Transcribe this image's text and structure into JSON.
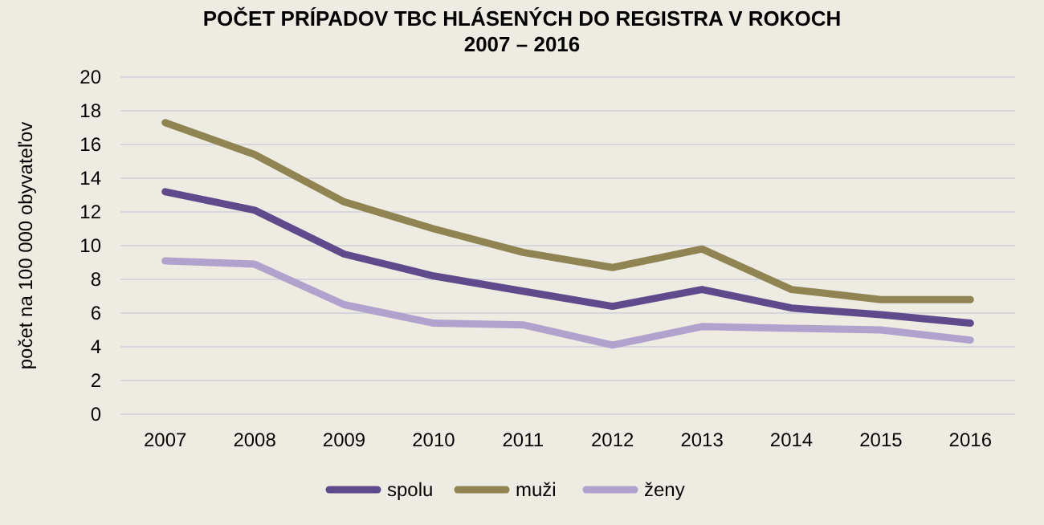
{
  "chart_data": {
    "type": "line",
    "title": "POČET PRÍPADOV TBC HLÁSENÝCH DO REGISTRA V ROKOCH\n2007 – 2016",
    "ylabel": "počet na 100 000 obyvateľov",
    "categories": [
      "2007",
      "2008",
      "2009",
      "2010",
      "2011",
      "2012",
      "2013",
      "2014",
      "2015",
      "2016"
    ],
    "series": [
      {
        "name": "spolu",
        "color": "#5f4b8b",
        "values": [
          13.2,
          12.1,
          9.5,
          8.2,
          7.3,
          6.4,
          7.4,
          6.3,
          5.9,
          5.4
        ]
      },
      {
        "name": "muži",
        "color": "#8f8452",
        "values": [
          17.3,
          15.4,
          12.6,
          11.0,
          9.6,
          8.7,
          9.8,
          7.4,
          6.8,
          6.8
        ]
      },
      {
        "name": "ženy",
        "color": "#b0a2cc",
        "values": [
          9.1,
          8.9,
          6.5,
          5.4,
          5.3,
          4.1,
          5.2,
          5.1,
          5.0,
          4.4
        ]
      }
    ],
    "ylim": [
      0,
      20
    ],
    "yticks": [
      0,
      2,
      4,
      6,
      8,
      10,
      12,
      14,
      16,
      18,
      20
    ],
    "grid": "y",
    "legend": "bottom",
    "line_style": "solid"
  }
}
